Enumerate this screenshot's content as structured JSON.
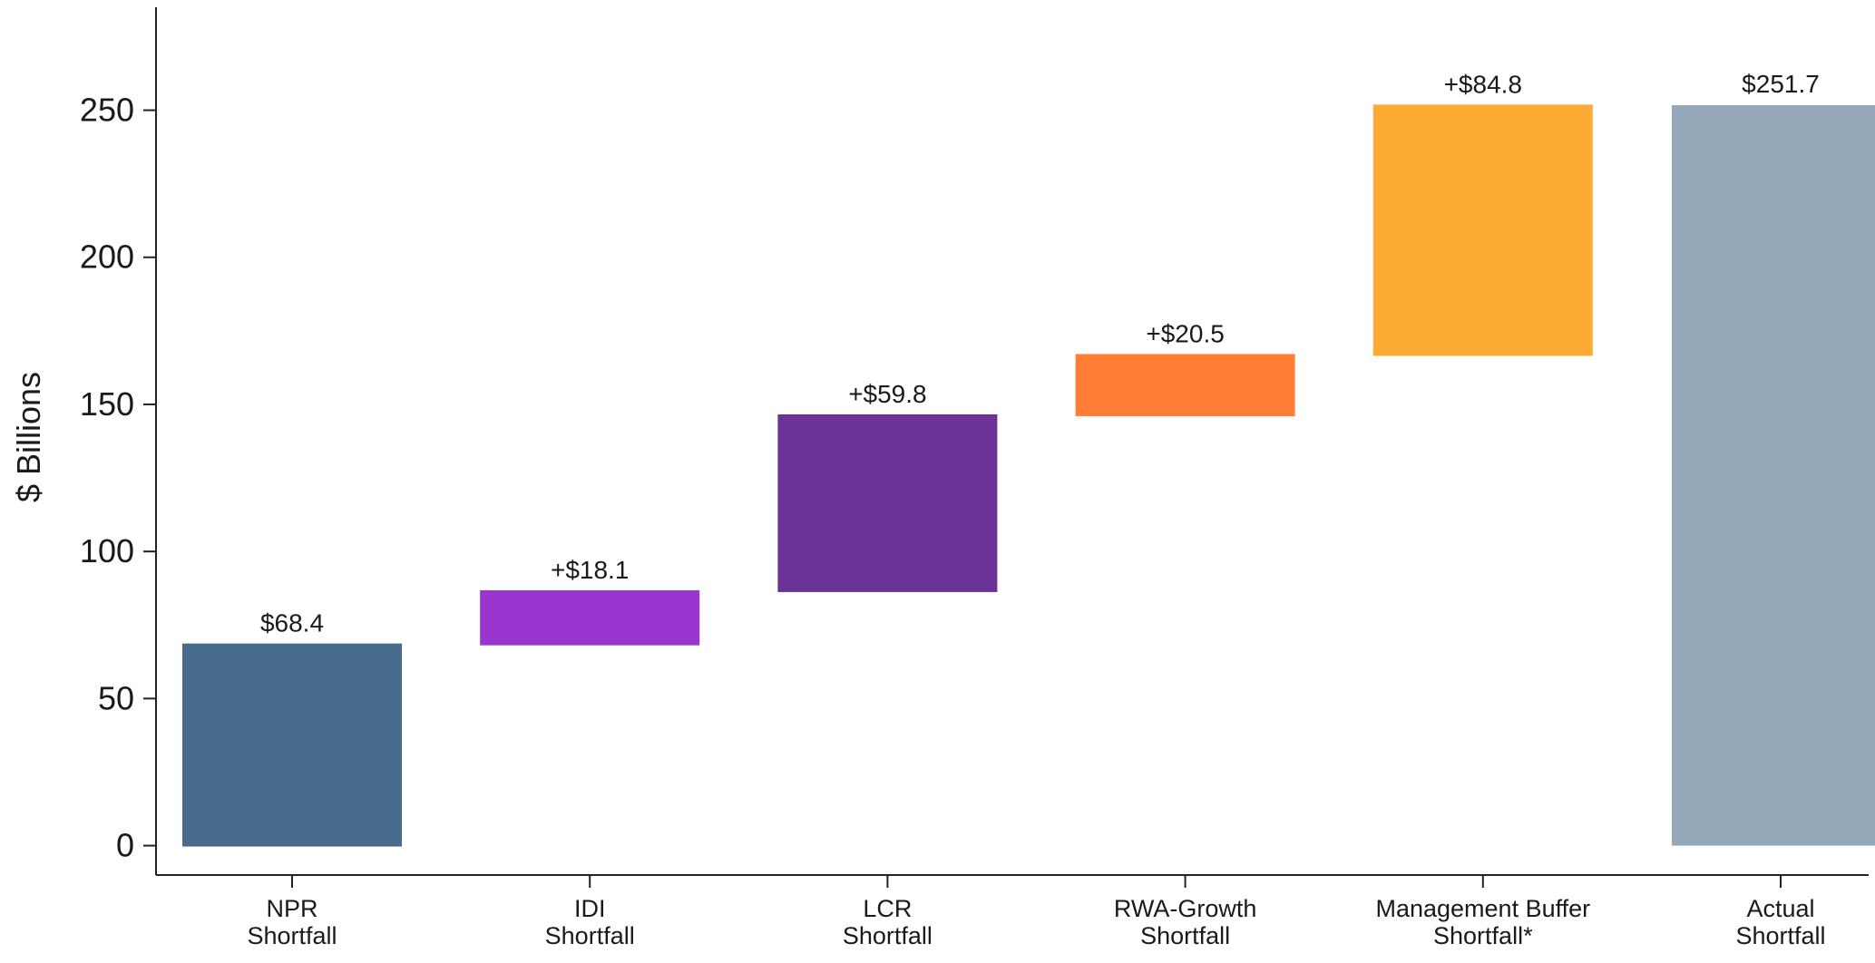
{
  "chart_data": {
    "type": "waterfall",
    "ylabel": "$ Billions",
    "ylim": [
      -10,
      285
    ],
    "yticks": [
      0,
      50,
      100,
      150,
      200,
      250
    ],
    "categories": [
      [
        "NPR",
        "Shortfall"
      ],
      [
        "IDI",
        "Shortfall"
      ],
      [
        "LCR",
        "Shortfall"
      ],
      [
        "RWA-Growth",
        "Shortfall"
      ],
      [
        "Management Buffer",
        "Shortfall*"
      ],
      [
        "Actual",
        "Shortfall"
      ]
    ],
    "bars": [
      {
        "base": 0,
        "value": 68.4,
        "label": "$68.4",
        "color": "#476b8c"
      },
      {
        "base": 68.4,
        "value": 18.1,
        "label": "+$18.1",
        "color": "#9b35d0"
      },
      {
        "base": 86.5,
        "value": 59.8,
        "label": "+$59.8",
        "color": "#6b3396"
      },
      {
        "base": 146.3,
        "value": 20.5,
        "label": "+$20.5",
        "color": "#ff7d35"
      },
      {
        "base": 166.8,
        "value": 84.8,
        "label": "+$84.8",
        "color": "#fcab35"
      },
      {
        "base": 0,
        "value": 251.7,
        "label": "$251.7",
        "color": "#95a8b9"
      }
    ],
    "grid": false,
    "legend": "none"
  }
}
